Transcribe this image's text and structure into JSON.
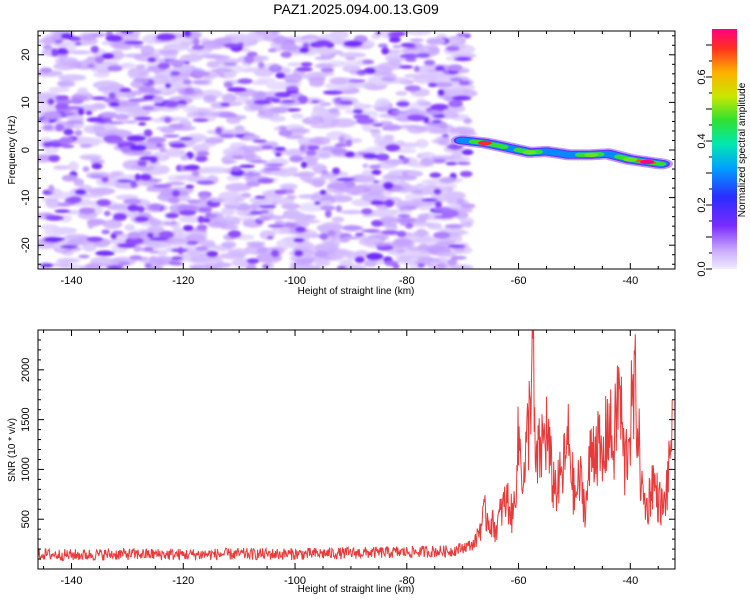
{
  "title": "PAZ1.2025.094.00.13.G09",
  "colors": {
    "snr_line": "#e83a3a",
    "frame": "#000000",
    "low_amplitude": "#d9ccff",
    "mid_amplitude": "#7a2cff",
    "high_amplitude": "#ff1a4a"
  },
  "chart_data": [
    {
      "type": "heatmap",
      "title": "PAZ1.2025.094.00.13.G09",
      "xlabel": "Height of straight line (km)",
      "ylabel": "Frequency (Hz)",
      "xlim": [
        -146,
        -32
      ],
      "ylim": [
        -25,
        25
      ],
      "x_ticks": [
        -140,
        -120,
        -100,
        -80,
        -60,
        -40
      ],
      "y_ticks": [
        -20,
        -10,
        0,
        10,
        20
      ],
      "noise_region": {
        "x": [
          -145,
          -69
        ],
        "frequency": [
          -25,
          25
        ],
        "amplitude": [
          0.05,
          0.15
        ]
      },
      "signal_track": {
        "x": [
          -70,
          -66,
          -62,
          -58,
          -55,
          -51,
          -47,
          -44,
          -40,
          -37,
          -34
        ],
        "frequency": [
          2.0,
          1.5,
          0.5,
          -0.5,
          -0.3,
          -1.0,
          -1.0,
          -0.8,
          -2.0,
          -2.5,
          -3.0
        ],
        "amplitude": [
          0.3,
          0.7,
          0.4,
          0.5,
          0.4,
          0.4,
          0.5,
          0.4,
          0.5,
          0.8,
          0.4
        ]
      },
      "colorbar": {
        "label": "Normalized spectral amplitude",
        "ticks": [
          "0.0",
          "0.2",
          "0.4",
          "0.6"
        ],
        "range": [
          0,
          0.75
        ]
      }
    },
    {
      "type": "line",
      "xlabel": "Height of straight line (km)",
      "ylabel": "SNR (10 * v/v)",
      "xlim": [
        -146,
        -32
      ],
      "ylim": [
        0,
        2400
      ],
      "x_ticks": [
        -140,
        -120,
        -100,
        -80,
        -60,
        -40
      ],
      "y_ticks": [
        500,
        1000,
        1500,
        2000
      ],
      "series": [
        {
          "x": [
            -146,
            -140,
            -130,
            -120,
            -110,
            -100,
            -90,
            -80,
            -72,
            -68,
            -66,
            -64,
            -63,
            -62,
            -61,
            -60,
            -59,
            -58,
            -57.5,
            -57,
            -56,
            -55,
            -54,
            -53,
            -52,
            -51,
            -50,
            -49,
            -48,
            -47,
            -46,
            -45,
            -44,
            -43,
            -42,
            -41,
            -40,
            -39,
            -38,
            -37,
            -36,
            -35,
            -34,
            -33,
            -32.5
          ],
          "y": [
            150,
            140,
            150,
            145,
            150,
            150,
            160,
            170,
            180,
            250,
            550,
            400,
            600,
            700,
            500,
            1300,
            900,
            1600,
            2380,
            1000,
            1200,
            1400,
            900,
            800,
            1000,
            1300,
            700,
            900,
            600,
            1200,
            1300,
            1000,
            1500,
            1200,
            1850,
            1000,
            1500,
            1800,
            800,
            600,
            900,
            700,
            600,
            1000,
            1700
          ]
        }
      ]
    }
  ],
  "ui": {
    "top_xlabel": "Height of straight line (km)",
    "top_ylabel": "Frequency (Hz)",
    "bot_xlabel": "Height of straight line (km)",
    "bot_ylabel": "SNR (10 * v/v)",
    "cb_label": "Normalized spectral amplitude"
  }
}
